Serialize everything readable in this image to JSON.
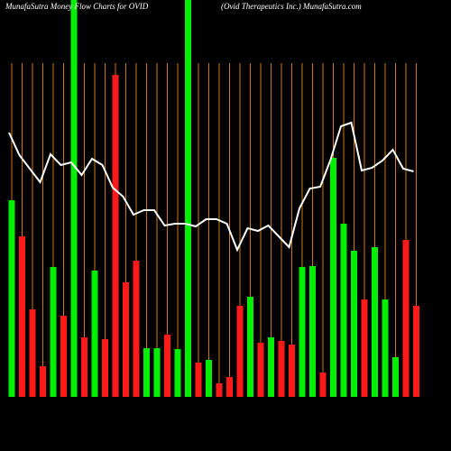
{
  "chart_data": {
    "type": "bar",
    "title": "MunafaSutra  Money Flow  Charts for OVID",
    "subtitle": "(Ovid Therapeutics Inc.) MunafaSutra.com",
    "categories": [
      null,
      null,
      null,
      null,
      null,
      null,
      null,
      null,
      null,
      null,
      null,
      null,
      null,
      null,
      null,
      null,
      null,
      null,
      null,
      null,
      null,
      null,
      null,
      null,
      null,
      null,
      null,
      null,
      null,
      null,
      null,
      null,
      null,
      null,
      null,
      null,
      null,
      null,
      null,
      null
    ],
    "values": [
      218,
      178,
      97,
      34,
      144,
      90,
      440,
      66,
      140,
      64,
      357,
      127,
      151,
      54,
      54,
      69,
      53,
      440,
      38,
      41,
      15,
      22,
      101,
      111,
      60,
      66,
      62,
      58,
      144,
      145,
      27,
      265,
      192,
      162,
      108,
      166,
      108,
      44,
      174,
      101
    ],
    "bar_colors": [
      "#00ee00",
      "#ff1a1a",
      "#ff1a1a",
      "#ff1a1a",
      "#00ee00",
      "#ff1a1a",
      "#00ee00",
      "#ff1a1a",
      "#00ee00",
      "#ff1a1a",
      "#ff1a1a",
      "#ff1a1a",
      "#ff1a1a",
      "#00ee00",
      "#00ee00",
      "#ff1a1a",
      "#00ee00",
      "#00ee00",
      "#ff1a1a",
      "#00ee00",
      "#ff1a1a",
      "#ff1a1a",
      "#ff1a1a",
      "#00ee00",
      "#ff1a1a",
      "#00ee00",
      "#ff1a1a",
      "#ff1a1a",
      "#00ee00",
      "#00ee00",
      "#ff1a1a",
      "#00ee00",
      "#00ee00",
      "#00ee00",
      "#ff1a1a",
      "#00ee00",
      "#00ee00",
      "#00ee00",
      "#ff1a1a",
      "#ff1a1a"
    ],
    "line_values": [
      293,
      268,
      253,
      238,
      269,
      257,
      260,
      246,
      264,
      257,
      232,
      222,
      202,
      207,
      207,
      190,
      192,
      192,
      189,
      197,
      197,
      192,
      163,
      187,
      184,
      190,
      178,
      166,
      209,
      231,
      233,
      263,
      300,
      304,
      251,
      254,
      262,
      274,
      253,
      250
    ],
    "line_color": "#ffffff",
    "grid_color": "#cc7a00",
    "ylim": [
      0,
      440
    ]
  }
}
